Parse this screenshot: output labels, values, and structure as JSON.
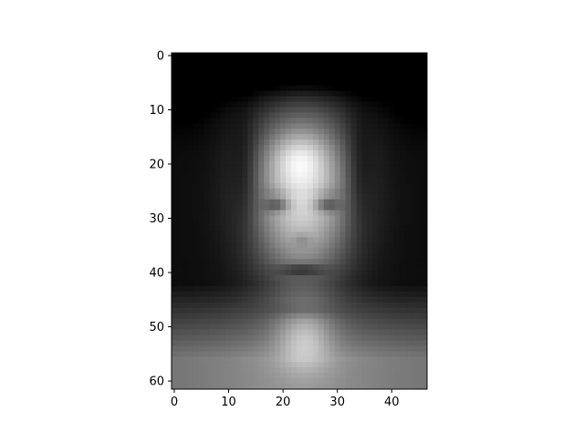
{
  "chart_data": {
    "type": "heatmap",
    "colormap": "gray",
    "title": "",
    "xlabel": "",
    "ylabel": "",
    "rows": 62,
    "cols": 47,
    "xlim": [
      -0.5,
      46.5
    ],
    "ylim": [
      61.5,
      -0.5
    ],
    "x_ticks": [
      "0",
      "10",
      "20",
      "30",
      "40"
    ],
    "y_ticks": [
      "0",
      "10",
      "20",
      "30",
      "40",
      "50",
      "60"
    ],
    "grid": false,
    "image_content": "average face (mean of grayscale face images)"
  }
}
